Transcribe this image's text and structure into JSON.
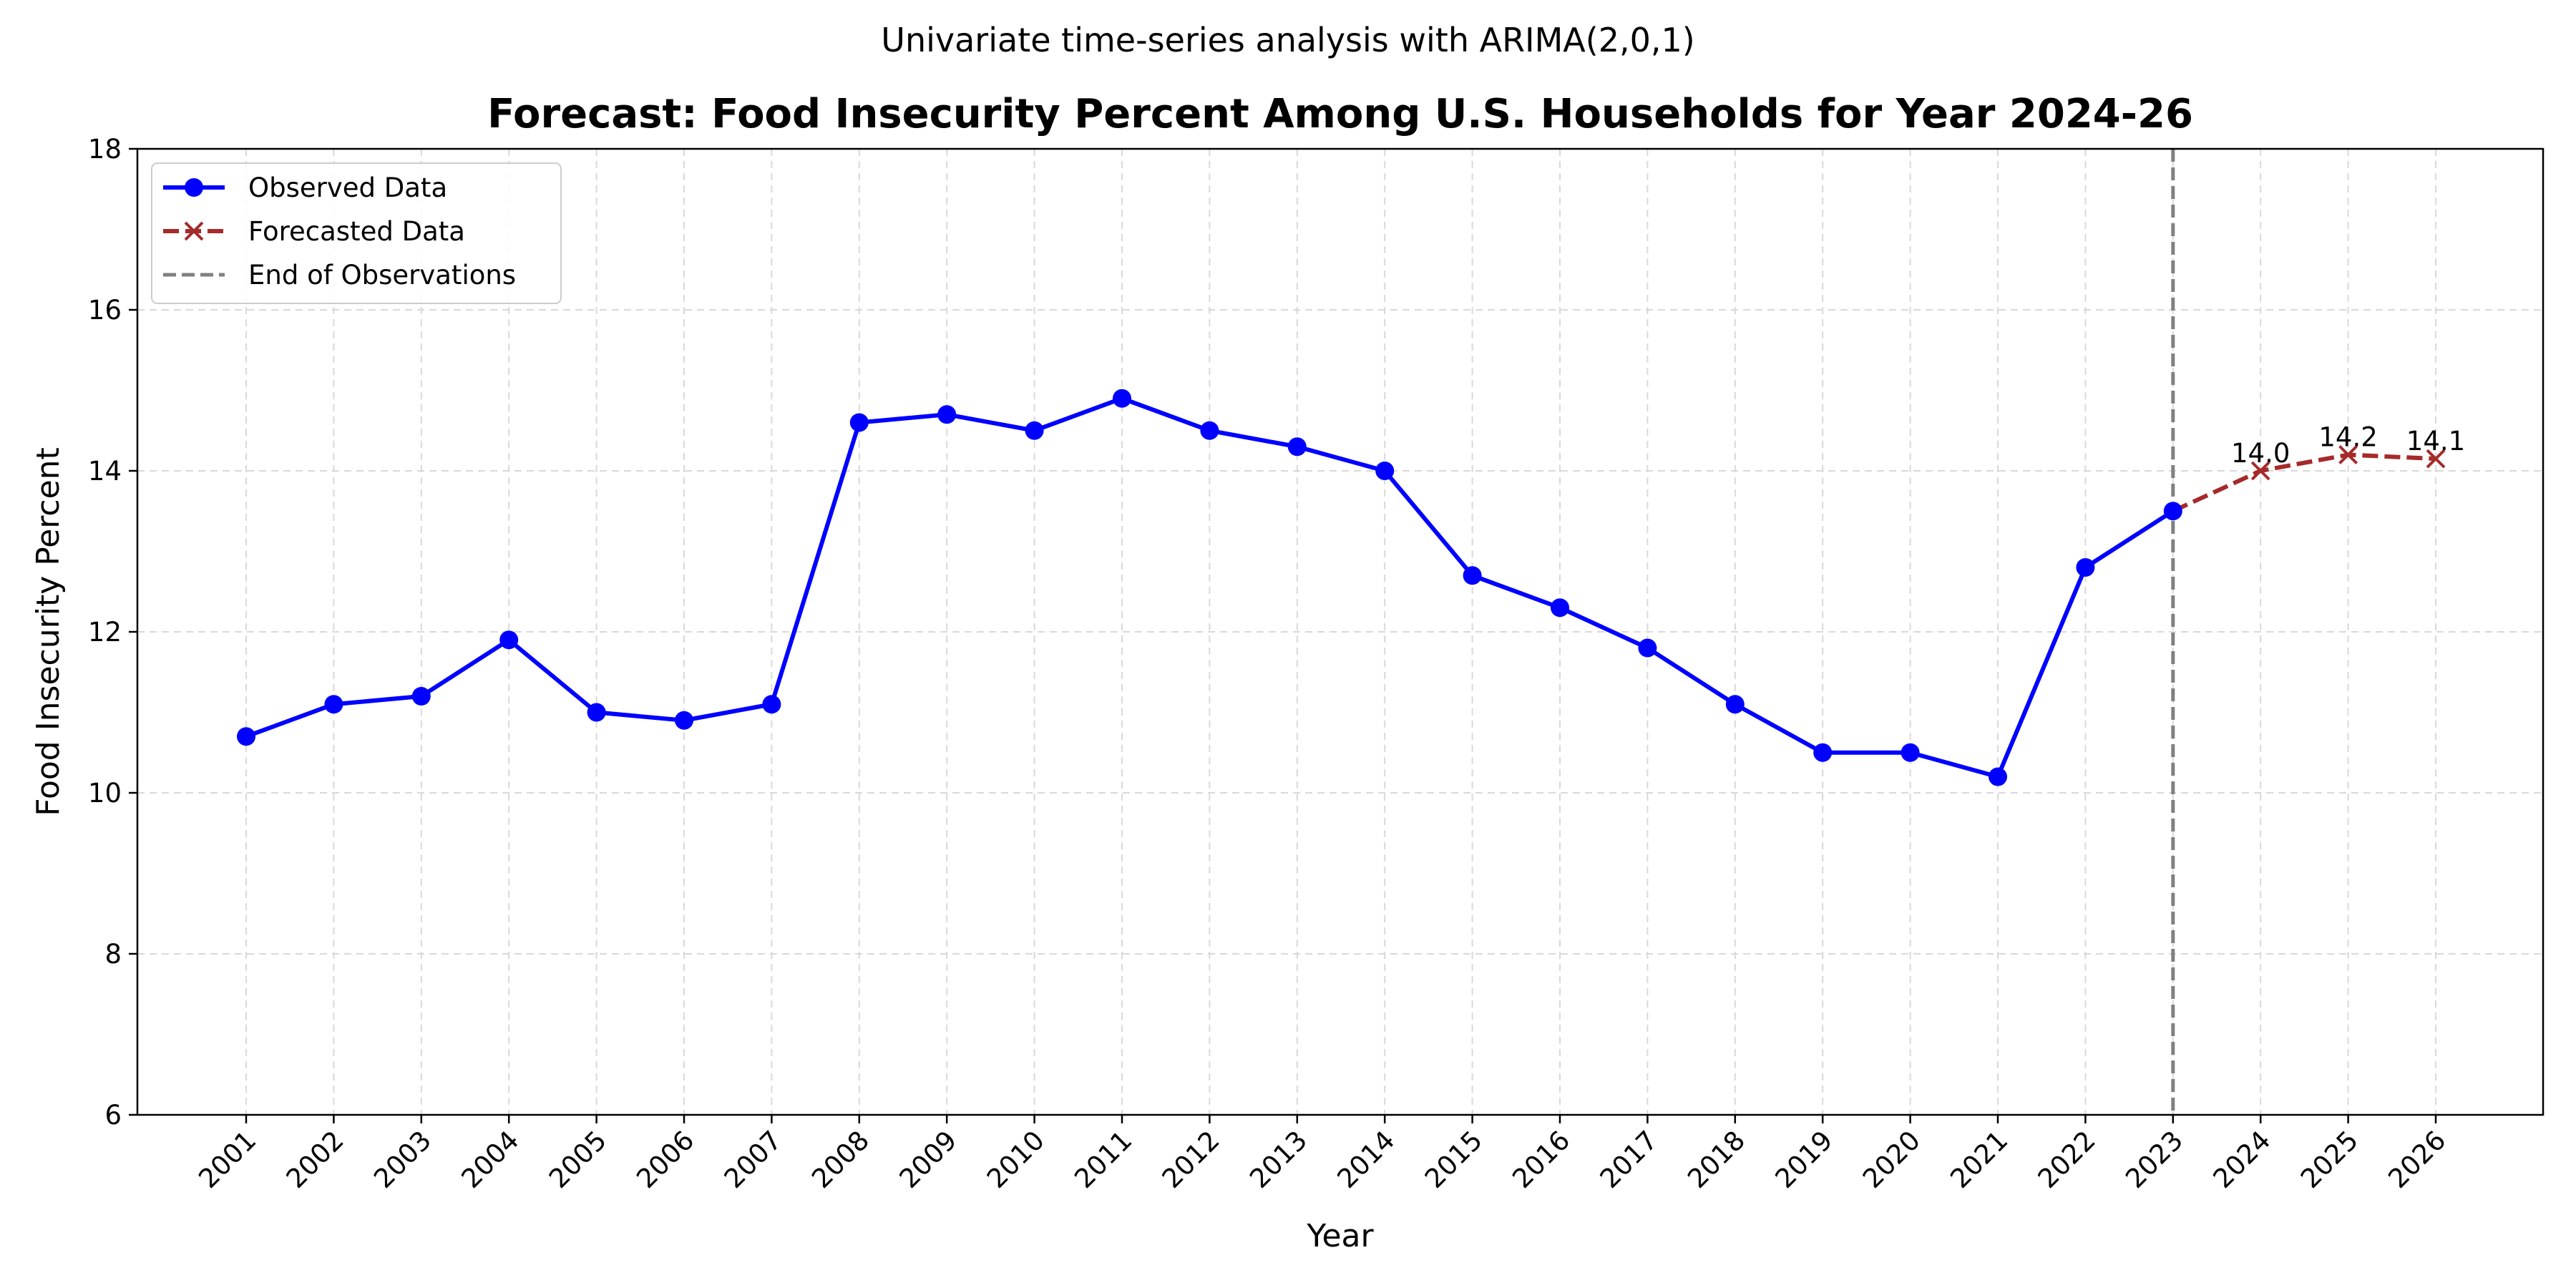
{
  "suptitle": "Univariate time-series analysis with ARIMA(2,0,1)",
  "chart_data": {
    "type": "line",
    "title": "Forecast: Food Insecurity Percent Among U.S. Households for Year 2024-26",
    "xlabel": "Year",
    "ylabel": "Food Insecurity Percent",
    "ylim": [
      6,
      18
    ],
    "yticks": [
      6,
      8,
      10,
      12,
      14,
      16,
      18
    ],
    "x_tick_labels": [
      "2001",
      "2002",
      "2003",
      "2004",
      "2005",
      "2006",
      "2007",
      "2008",
      "2009",
      "2010",
      "2011",
      "2012",
      "2013",
      "2014",
      "2015",
      "2016",
      "2017",
      "2018",
      "2019",
      "2020",
      "2021",
      "2022",
      "2023",
      "2024",
      "2025",
      "2026"
    ],
    "x_tick_rotation": 45,
    "grid": true,
    "legend_position": "top-left",
    "series": [
      {
        "name": "Observed Data",
        "color": "#0000ff",
        "marker": "circle",
        "linestyle": "solid",
        "x": [
          2001,
          2002,
          2003,
          2004,
          2005,
          2006,
          2007,
          2008,
          2009,
          2010,
          2011,
          2012,
          2013,
          2014,
          2015,
          2016,
          2017,
          2018,
          2019,
          2020,
          2021,
          2022,
          2023
        ],
        "values": [
          10.7,
          11.1,
          11.2,
          11.9,
          11.0,
          10.9,
          11.1,
          14.6,
          14.7,
          14.5,
          14.9,
          14.5,
          14.3,
          14.0,
          12.7,
          12.3,
          11.8,
          11.1,
          10.5,
          10.5,
          10.2,
          12.8,
          13.5
        ]
      },
      {
        "name": "Forecasted Data",
        "color": "#a52a2a",
        "marker": "x",
        "linestyle": "dashed",
        "x": [
          2023,
          2024,
          2025,
          2026
        ],
        "values": [
          13.5,
          14.0,
          14.2,
          14.15
        ],
        "data_labels": [
          {
            "x": 2024,
            "text": "14.0"
          },
          {
            "x": 2025,
            "text": "14.2"
          },
          {
            "x": 2026,
            "text": "14.1"
          }
        ]
      }
    ],
    "reference_lines": [
      {
        "name": "End of Observations",
        "orientation": "vertical",
        "x": 2023,
        "color": "#808080",
        "linestyle": "dashed"
      }
    ]
  }
}
